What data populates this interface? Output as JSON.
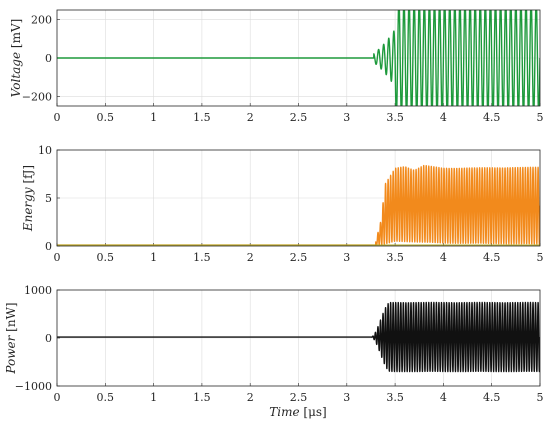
{
  "chart_data": [
    {
      "type": "line",
      "ylabel_italic": "Voltage",
      "ylabel_unit": "[mV]",
      "xlabel_italic": "",
      "xlabel_unit": "",
      "x_ticks": [
        "0",
        "0.5",
        "1",
        "1.5",
        "2",
        "2.5",
        "3",
        "3.5",
        "4",
        "4.5",
        "5"
      ],
      "y_ticks": [
        "200",
        "0",
        "−200"
      ],
      "y_tick_values": [
        200,
        0,
        -200
      ],
      "xlim": [
        0,
        5
      ],
      "ylim": [
        -250,
        250
      ],
      "grid": true,
      "series": [
        {
          "color": "#1e9a3c",
          "signal": "oscillation",
          "baseline": 0,
          "onset_time": 3.28,
          "transition_end": 3.5,
          "amplitude_before": 3,
          "peak_amplitude": 300,
          "transient_peaks": [
            40,
            -150
          ],
          "cycles_per_us": 19
        }
      ]
    },
    {
      "type": "line",
      "ylabel_italic": "Energy",
      "ylabel_unit": "[fJ]",
      "xlabel_italic": "",
      "xlabel_unit": "",
      "x_ticks": [
        "0",
        "0.5",
        "1",
        "1.5",
        "2",
        "2.5",
        "3",
        "3.5",
        "4",
        "4.5",
        "5"
      ],
      "y_ticks": [
        "10",
        "5",
        "0"
      ],
      "y_tick_values": [
        10,
        5,
        0
      ],
      "xlim": [
        0,
        5
      ],
      "ylim": [
        0,
        10
      ],
      "grid": true,
      "series": [
        {
          "color": "#f28a1c",
          "signal": "energy_band",
          "baseline": 0.1,
          "onset_time": 3.3,
          "max_values": [
            [
              3.3,
              0.5
            ],
            [
              3.35,
              2.5
            ],
            [
              3.4,
              6.5
            ],
            [
              3.5,
              8.1
            ],
            [
              3.6,
              8.3
            ],
            [
              3.7,
              7.9
            ],
            [
              3.8,
              8.4
            ],
            [
              4.0,
              8.1
            ],
            [
              5.0,
              8.2
            ]
          ],
          "min_values": [
            [
              3.3,
              0.1
            ],
            [
              3.4,
              0.2
            ],
            [
              3.5,
              0.5
            ],
            [
              4.0,
              0.3
            ],
            [
              5.0,
              0.2
            ]
          ],
          "cycles_per_us": 38
        },
        {
          "color": "#b3a823",
          "signal": "flat",
          "value": 0.1
        }
      ]
    },
    {
      "type": "line",
      "ylabel_italic": "Power",
      "ylabel_unit": "[nW]",
      "xlabel_italic": "Time",
      "xlabel_unit": "[μs]",
      "x_ticks": [
        "0",
        "0.5",
        "1",
        "1.5",
        "2",
        "2.5",
        "3",
        "3.5",
        "4",
        "4.5",
        "5"
      ],
      "y_ticks": [
        "1000",
        "0",
        "−1000"
      ],
      "y_tick_values": [
        1000,
        0,
        -1000
      ],
      "xlim": [
        0,
        5
      ],
      "ylim": [
        -1000,
        1000
      ],
      "grid": true,
      "series": [
        {
          "color": "#111111",
          "signal": "power",
          "baseline": 20,
          "onset_time": 3.25,
          "transition_end": 3.45,
          "peak_upper": 720,
          "peak_lower": -720,
          "cycles_per_us": 38
        }
      ]
    }
  ]
}
